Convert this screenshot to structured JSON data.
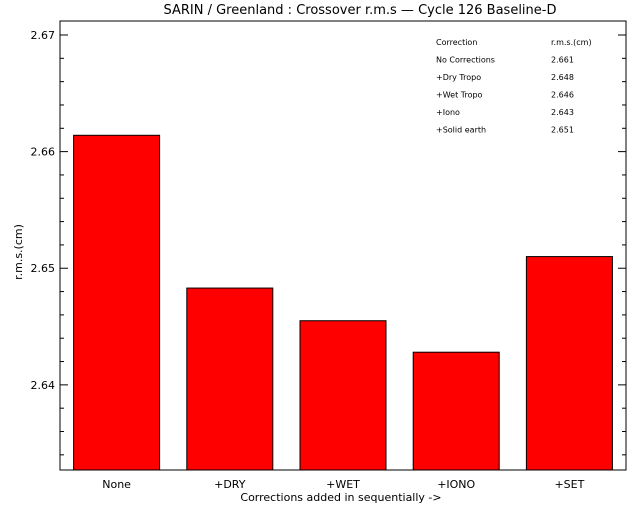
{
  "chart_data": {
    "type": "bar",
    "title": "SARIN / Greenland : Crossover r.m.s — Cycle 126 Baseline-D",
    "xlabel": "Corrections added in sequentially ->",
    "ylabel": "r.m.s.(cm)",
    "categories": [
      "None",
      "+DRY",
      "+WET",
      "+IONO",
      "+SET"
    ],
    "values": [
      2.6614,
      2.6483,
      2.6455,
      2.6428,
      2.651
    ],
    "ylim": [
      2.6327,
      2.6712
    ],
    "yticks": [
      2.64,
      2.65,
      2.66,
      2.67
    ],
    "ytick_labels": [
      "2.64",
      "2.65",
      "2.66",
      "2.67"
    ],
    "bar_color": "#ff0000",
    "grid": false,
    "legend_table": {
      "placement": "top-right",
      "header": [
        "Correction",
        "r.m.s.(cm)"
      ],
      "rows": [
        [
          "No Corrections",
          "2.661"
        ],
        [
          "+Dry Tropo",
          "2.648"
        ],
        [
          "+Wet Tropo",
          "2.646"
        ],
        [
          "+Iono",
          "2.643"
        ],
        [
          "+Solid earth",
          "2.651"
        ]
      ]
    }
  }
}
